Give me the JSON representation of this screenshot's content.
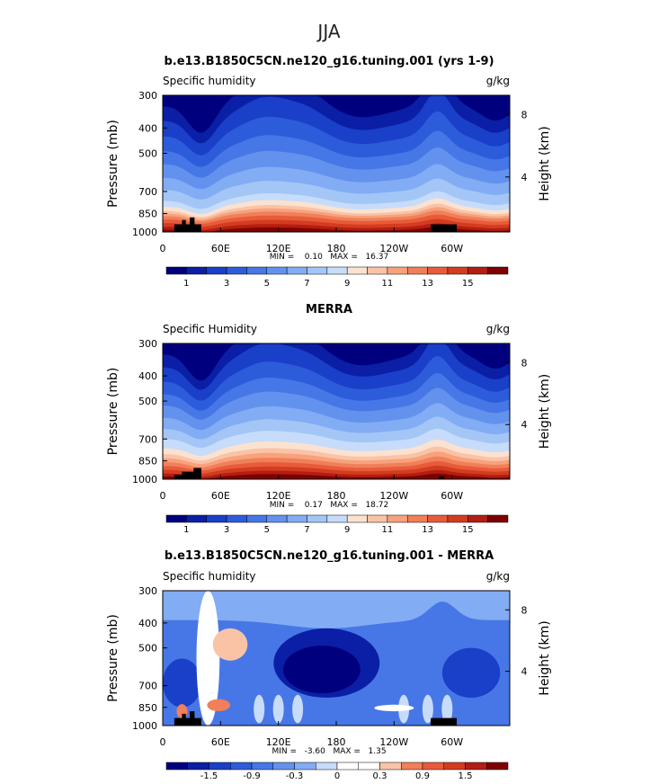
{
  "season": "JJA",
  "panels": [
    {
      "title": "b.e13.B1850C5CN.ne120_g16.tuning.001 (yrs 1-9)",
      "left_label": "Specific humidity",
      "units": "g/kg",
      "ylabel": "Pressure (mb)",
      "ylabel_right": "Height (km)",
      "stats": "MIN =    0.10   MAX =   16.37",
      "kind": "model"
    },
    {
      "title": "MERRA",
      "left_label": "Specific Humidity",
      "units": "g/kg",
      "ylabel": "Pressure (mb)",
      "ylabel_right": "Height (km)",
      "stats": "MIN =    0.17   MAX =   18.72",
      "kind": "obs"
    },
    {
      "title": "b.e13.B1850C5CN.ne120_g16.tuning.001 - MERRA",
      "left_label": "Specific humidity",
      "units": "g/kg",
      "ylabel": "Pressure (mb)",
      "ylabel_right": "Height (km)",
      "stats": "MIN =   -3.60   MAX =   1.35",
      "kind": "diff"
    }
  ],
  "chart_data": [
    {
      "type": "heatmap",
      "title": "b.e13.B1850C5CN.ne120_g16.tuning.001 (yrs 1-9)",
      "ylabel": "Pressure (mb)",
      "ylabel_right": "Height (km)",
      "x_ticks": [
        "0",
        "60E",
        "120E",
        "180",
        "120W",
        "60W"
      ],
      "x_tick_values": [
        0,
        60,
        120,
        180,
        240,
        300
      ],
      "xlim": [
        0,
        360
      ],
      "y_ticks": [
        300,
        400,
        500,
        700,
        850,
        1000
      ],
      "ylim": [
        1000,
        300
      ],
      "right_ticks": [
        "8",
        "4"
      ],
      "right_tick_values": [
        8,
        4
      ],
      "colorbar_labels": [
        "1",
        "3",
        "5",
        "7",
        "9",
        "11",
        "13",
        "15"
      ],
      "colorbar_levels": [
        0,
        1,
        2,
        3,
        4,
        5,
        6,
        7,
        8,
        9,
        10,
        11,
        12,
        13,
        14,
        15,
        16
      ],
      "min": 0.1,
      "max": 16.37
    },
    {
      "type": "heatmap",
      "title": "MERRA",
      "ylabel": "Pressure (mb)",
      "ylabel_right": "Height (km)",
      "x_ticks": [
        "0",
        "60E",
        "120E",
        "180",
        "120W",
        "60W"
      ],
      "x_tick_values": [
        0,
        60,
        120,
        180,
        240,
        300
      ],
      "xlim": [
        0,
        360
      ],
      "y_ticks": [
        300,
        400,
        500,
        700,
        850,
        1000
      ],
      "ylim": [
        1000,
        300
      ],
      "right_ticks": [
        "8",
        "4"
      ],
      "right_tick_values": [
        8,
        4
      ],
      "colorbar_labels": [
        "1",
        "3",
        "5",
        "7",
        "9",
        "11",
        "13",
        "15"
      ],
      "colorbar_levels": [
        0,
        1,
        2,
        3,
        4,
        5,
        6,
        7,
        8,
        9,
        10,
        11,
        12,
        13,
        14,
        15,
        16
      ],
      "min": 0.17,
      "max": 18.72
    },
    {
      "type": "heatmap",
      "title": "b.e13.B1850C5CN.ne120_g16.tuning.001 - MERRA",
      "ylabel": "Pressure (mb)",
      "ylabel_right": "Height (km)",
      "x_ticks": [
        "0",
        "60E",
        "120E",
        "180",
        "120W",
        "60W"
      ],
      "x_tick_values": [
        0,
        60,
        120,
        180,
        240,
        300
      ],
      "xlim": [
        0,
        360
      ],
      "y_ticks": [
        300,
        400,
        500,
        700,
        850,
        1000
      ],
      "ylim": [
        1000,
        300
      ],
      "right_ticks": [
        "8",
        "4"
      ],
      "right_tick_values": [
        8,
        4
      ],
      "colorbar_labels": [
        "-1.5",
        "-0.9",
        "-0.3",
        "0",
        "0.3",
        "0.9",
        "1.5"
      ],
      "colorbar_levels": [
        -1.8,
        -1.5,
        -1.2,
        -0.9,
        -0.6,
        -0.3,
        -0.1,
        0,
        0.1,
        0.3,
        0.6,
        0.9,
        1.2,
        1.5,
        1.8
      ],
      "min": -3.6,
      "max": 1.35
    }
  ],
  "colors": {
    "full_scale": [
      "#00007f",
      "#0a1fa6",
      "#1a3fc8",
      "#2d5cdb",
      "#4777e6",
      "#6392ee",
      "#82acf3",
      "#a3c6f7",
      "#c6dcfa",
      "#fbe2d0",
      "#fac3a6",
      "#f7a27d",
      "#f17f59",
      "#e85b3a",
      "#d43c20",
      "#b31e12",
      "#7f0000"
    ],
    "diff_scale": [
      "#00007f",
      "#0a1fa6",
      "#1a3fc8",
      "#2d5cdb",
      "#4777e6",
      "#6392ee",
      "#82acf3",
      "#c6dcfa",
      "#ffffff",
      "#ffffff",
      "#fac3a6",
      "#f17f59",
      "#e85b3a",
      "#d43c20",
      "#b31e12",
      "#7f0000"
    ],
    "topography": "#000000"
  }
}
